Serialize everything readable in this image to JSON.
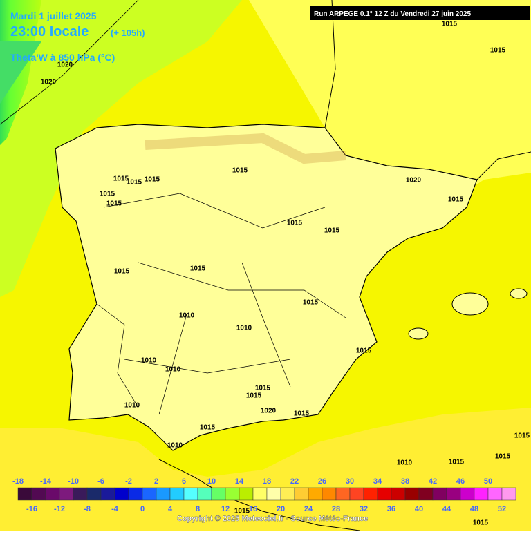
{
  "header": {
    "date": "Mardi 1 juillet 2025",
    "time": "23:00 locale",
    "lead": "(+ 105h)",
    "field": "Theta'W à 850 hPa (°C)",
    "run": "Run ARPEGE 0.1° 12 Z du Vendredi 27 juin 2025"
  },
  "isobar_labels": [
    "1020",
    "1020",
    "1015",
    "1015",
    "1015",
    "1015",
    "1015",
    "1015",
    "1015",
    "1015",
    "1015",
    "1020",
    "1015",
    "1015",
    "1015",
    "1015",
    "1015",
    "1010",
    "1010",
    "1015",
    "1010",
    "1010",
    "1010",
    "1015",
    "1015",
    "1020",
    "1015",
    "1010",
    "1015",
    "1015",
    "1010",
    "1015",
    "1015",
    "1015",
    "1015"
  ],
  "legend": {
    "colors": [
      "#3a0a3a",
      "#520a52",
      "#6a0a6a",
      "#7d1a7d",
      "#3a1a5a",
      "#1a2a6a",
      "#1a1a9a",
      "#0000cc",
      "#0a2ae6",
      "#1a66ff",
      "#1a99ff",
      "#22ccff",
      "#55ffff",
      "#55ffbb",
      "#66ff66",
      "#99ff33",
      "#bbee00",
      "#ffff66",
      "#ffffaa",
      "#ffee55",
      "#ffcc33",
      "#ffaa00",
      "#ff8800",
      "#ff6622",
      "#ff4422",
      "#ff2200",
      "#e60000",
      "#cc0000",
      "#990000",
      "#800020",
      "#800060",
      "#990080",
      "#cc00cc",
      "#ff22ff",
      "#ff66ff",
      "#ff99ee"
    ],
    "ticks_top": [
      -18,
      -14,
      -10,
      -6,
      -2,
      2,
      6,
      10,
      14,
      18,
      22,
      26,
      30,
      34,
      38,
      42,
      46,
      50
    ],
    "ticks_bottom": [
      -16,
      -12,
      -8,
      -4,
      0,
      4,
      8,
      12,
      16,
      20,
      24,
      28,
      32,
      36,
      40,
      44,
      48,
      52
    ]
  },
  "footer": {
    "copyright": "Copyright © 2025 Meteociel.fr - Source Météo-France"
  }
}
